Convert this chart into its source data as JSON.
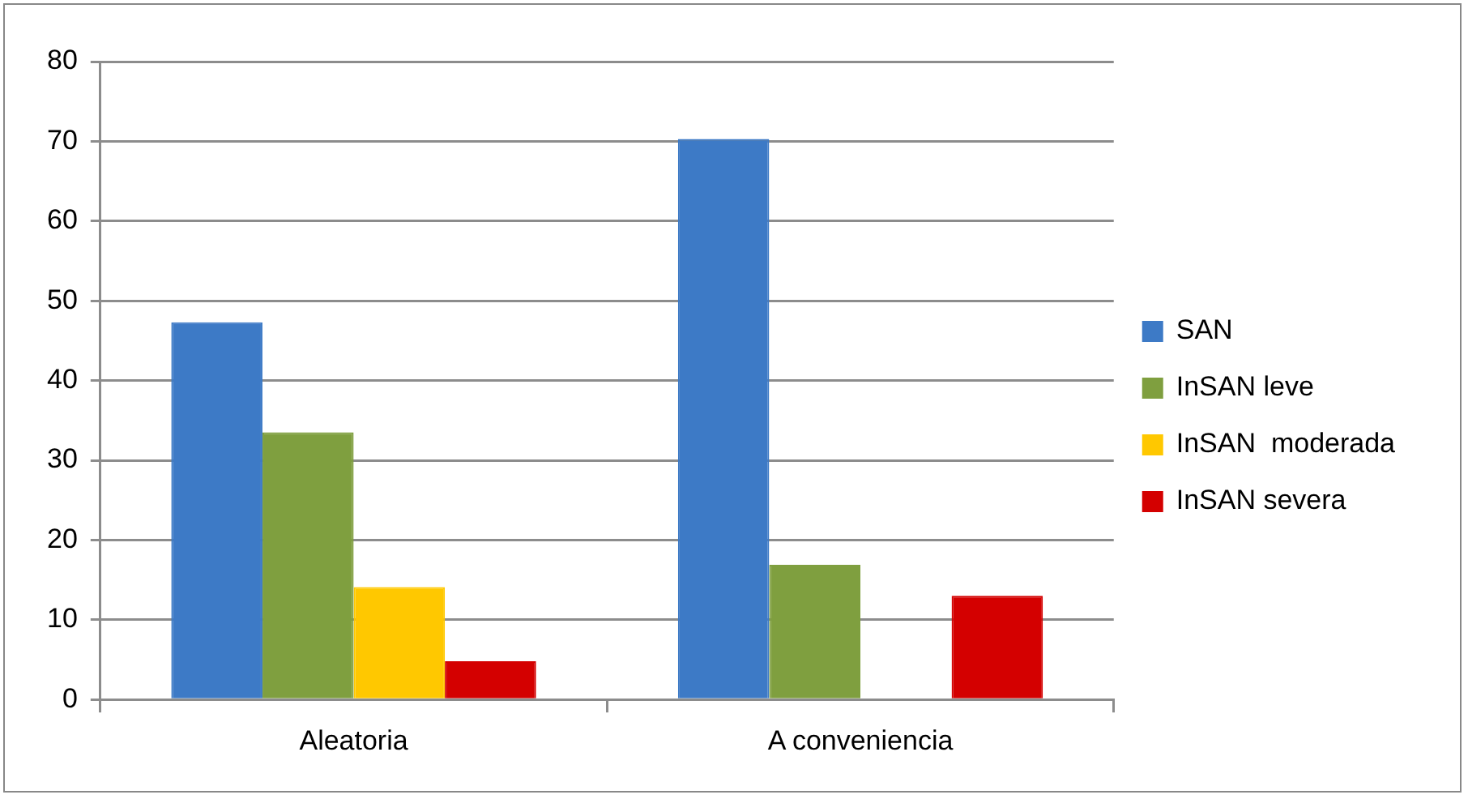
{
  "chart_data": {
    "type": "bar",
    "categories": [
      "Aleatoria",
      "A conveniencia"
    ],
    "series": [
      {
        "name": "SAN",
        "color": "#3d7ac6",
        "values": [
          47.3,
          70.3
        ]
      },
      {
        "name": "InSAN leve",
        "color": "#7f9f3f",
        "values": [
          33.5,
          16.9
        ]
      },
      {
        "name": "InSAN  moderada",
        "color": "#ffc800",
        "values": [
          14.1,
          0
        ]
      },
      {
        "name": "InSAN severa",
        "color": "#d40000",
        "values": [
          4.8,
          13
        ]
      }
    ],
    "ylim": [
      0,
      80
    ],
    "yticks": [
      0,
      10,
      20,
      30,
      40,
      50,
      60,
      70,
      80
    ],
    "grid": "y",
    "legend": "right"
  }
}
